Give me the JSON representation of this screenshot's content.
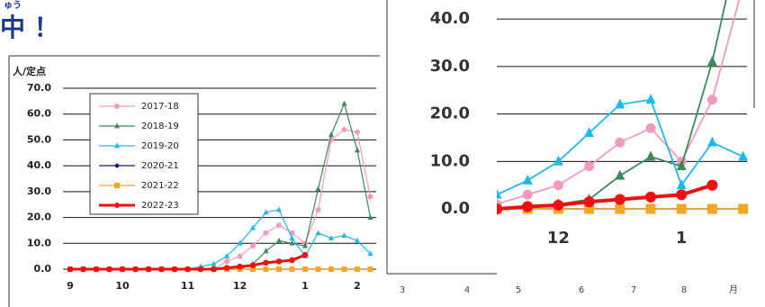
{
  "heading": {
    "ruby": "ゅう",
    "text": "中 ！"
  },
  "background_axis": {
    "labels": [
      "3",
      "4",
      "5",
      "6",
      "7",
      "8",
      "月"
    ]
  },
  "chart_data": [
    {
      "type": "line",
      "ylabel": "人/定点",
      "legend": "upper left",
      "grid": true,
      "categories": [
        "9",
        null,
        null,
        null,
        "10",
        null,
        null,
        null,
        null,
        "11",
        null,
        null,
        null,
        "12",
        null,
        null,
        null,
        null,
        "1",
        null,
        null,
        null,
        "2",
        null
      ],
      "ylim": [
        0,
        70
      ],
      "yticks": [
        {
          "value": 0,
          "label": "0.0"
        },
        {
          "value": 10,
          "label": "10.0"
        },
        {
          "value": 20,
          "label": "20.0"
        },
        {
          "value": 30,
          "label": "30.0"
        },
        {
          "value": 40,
          "label": "40.0"
        },
        {
          "value": 50,
          "label": "50.0"
        },
        {
          "value": 60,
          "label": "60.0"
        },
        {
          "value": 70,
          "label": "70.0"
        }
      ],
      "series": [
        {
          "name": "2017-18",
          "color": "#f49ac1",
          "marker": "circle",
          "values": [
            0,
            0,
            0,
            0,
            0,
            0,
            0,
            0,
            0,
            0,
            0,
            0,
            3,
            5,
            9,
            14,
            17,
            14,
            10,
            23,
            50,
            54,
            53,
            28
          ]
        },
        {
          "name": "2018-19",
          "color": "#3a8a5a",
          "marker": "triangle",
          "values": [
            0,
            0,
            0,
            0,
            0,
            0,
            0,
            0,
            0,
            0,
            0,
            0,
            0,
            0,
            2,
            7,
            11,
            10,
            9,
            31,
            52,
            64,
            46,
            20
          ]
        },
        {
          "name": "2019-20",
          "color": "#22b8ee",
          "marker": "triangle",
          "values": [
            0,
            0,
            0,
            0,
            0,
            0,
            0,
            0,
            0,
            0,
            1,
            2,
            5,
            10,
            16,
            22,
            23,
            12,
            5,
            14,
            12,
            13,
            11,
            6
          ]
        },
        {
          "name": "2020-21",
          "color": "#1a1a7a",
          "marker": "diamond",
          "values": [
            0,
            0,
            0,
            0,
            0,
            0,
            0,
            0,
            0,
            0,
            0,
            0,
            0,
            0,
            0,
            0,
            0,
            0,
            0,
            0,
            0,
            0,
            0,
            0
          ]
        },
        {
          "name": "2021-22",
          "color": "#f5a623",
          "marker": "square",
          "values": [
            0,
            0,
            0,
            0,
            0,
            0,
            0,
            0,
            0,
            0,
            0,
            0,
            0,
            0,
            0,
            0,
            0,
            0,
            0,
            0,
            0,
            0,
            0,
            0
          ]
        },
        {
          "name": "2022-23",
          "color": "#ee1111",
          "marker": "circle",
          "bold": true,
          "values": [
            0,
            0,
            0,
            0,
            0,
            0,
            0,
            0,
            0,
            0,
            0,
            0,
            0.5,
            1,
            1.5,
            2.5,
            3,
            3.5,
            5.5,
            null,
            null,
            null,
            null,
            null
          ]
        }
      ]
    },
    {
      "type": "line",
      "grid": true,
      "categories": [
        null,
        null,
        "12",
        null,
        null,
        null,
        "1",
        null,
        null
      ],
      "ylim": [
        -1.5,
        44
      ],
      "yticks": [
        {
          "value": 0,
          "label": "0.0"
        },
        {
          "value": 10,
          "label": "10.0"
        },
        {
          "value": 20,
          "label": "20.0"
        },
        {
          "value": 30,
          "label": "30.0"
        },
        {
          "value": 40,
          "label": "40.0"
        }
      ],
      "series": [
        {
          "color": "#f49ac1",
          "marker": "circle",
          "values": [
            1,
            3,
            5,
            9,
            14,
            17,
            10,
            23,
            47
          ]
        },
        {
          "color": "#3a8a5a",
          "marker": "triangle",
          "values": [
            0,
            0.5,
            1,
            2,
            7,
            11,
            9,
            31,
            60
          ]
        },
        {
          "color": "#22b8ee",
          "marker": "triangle",
          "values": [
            3,
            6,
            10,
            16,
            22,
            23,
            5,
            14,
            11
          ]
        },
        {
          "color": "#1a1a7a",
          "marker": "diamond",
          "values": [
            0,
            0,
            0,
            0,
            0,
            0,
            0,
            0,
            0
          ]
        },
        {
          "color": "#f5a623",
          "marker": "square",
          "values": [
            0,
            0,
            0,
            0,
            0,
            0,
            0,
            0,
            0
          ]
        },
        {
          "color": "#ee1111",
          "marker": "circle",
          "bold": true,
          "values": [
            0,
            0.5,
            0.8,
            1.5,
            2,
            2.5,
            3,
            5,
            null
          ]
        }
      ]
    }
  ]
}
